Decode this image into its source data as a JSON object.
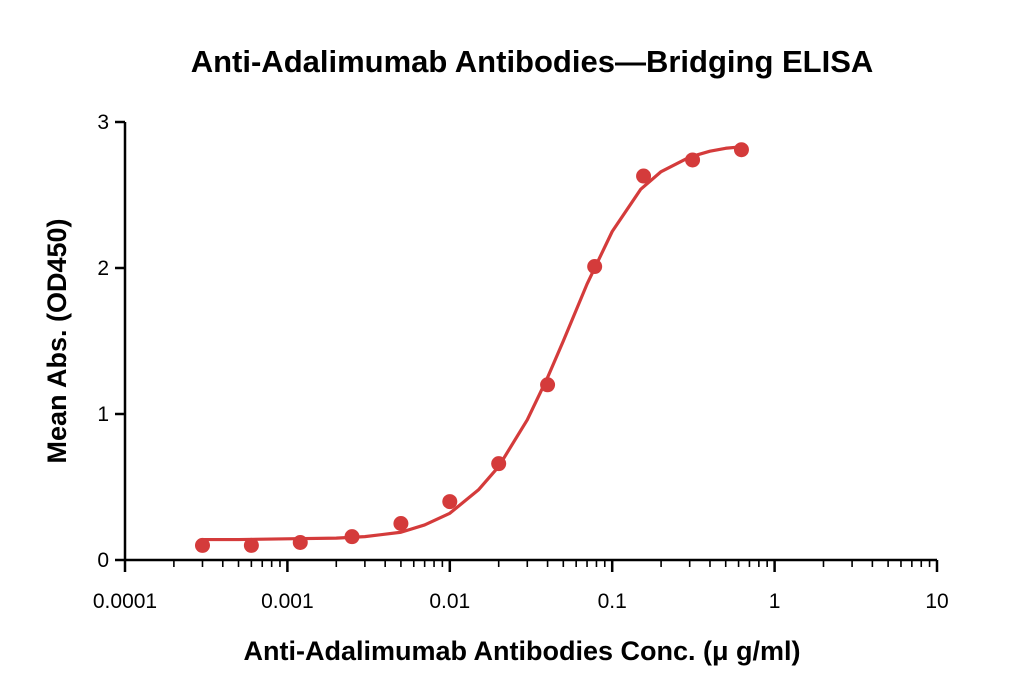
{
  "chart_data": {
    "type": "scatter",
    "title": "Anti-Adalimumab Antibodies—Bridging ELISA",
    "xlabel": "Anti-Adalimumab Antibodies Conc. (μ g/ml)",
    "ylabel": "Mean Abs. (OD450)",
    "xscale": "log",
    "xlim": [
      0.0001,
      10
    ],
    "ylim": [
      0,
      3
    ],
    "xticks": [
      0.0001,
      0.001,
      0.01,
      0.1,
      1,
      10
    ],
    "xtick_labels": [
      "0.0001",
      "0.001",
      "0.01",
      "0.1",
      "1",
      "10"
    ],
    "yticks": [
      0,
      1,
      2,
      3
    ],
    "ytick_labels": [
      "0",
      "1",
      "2",
      "3"
    ],
    "grid": false,
    "legend": "none",
    "color": "#d43b3b",
    "series": [
      {
        "x": [
          0.0003,
          0.0006,
          0.0012,
          0.0025,
          0.005,
          0.01,
          0.02,
          0.04,
          0.078,
          0.156,
          0.3125,
          0.625
        ],
        "y": [
          0.1,
          0.1,
          0.12,
          0.16,
          0.25,
          0.4,
          0.66,
          1.2,
          2.01,
          2.63,
          2.74,
          2.81
        ],
        "fit": "4PL",
        "fit_curve": {
          "x": [
            0.0003,
            0.0005,
            0.001,
            0.002,
            0.003,
            0.005,
            0.007,
            0.01,
            0.015,
            0.02,
            0.03,
            0.04,
            0.05,
            0.07,
            0.1,
            0.15,
            0.2,
            0.3,
            0.4,
            0.5,
            0.625
          ],
          "y": [
            0.14,
            0.14,
            0.145,
            0.15,
            0.16,
            0.19,
            0.24,
            0.32,
            0.48,
            0.64,
            0.96,
            1.25,
            1.5,
            1.89,
            2.25,
            2.54,
            2.66,
            2.76,
            2.8,
            2.82,
            2.83
          ]
        }
      }
    ]
  }
}
